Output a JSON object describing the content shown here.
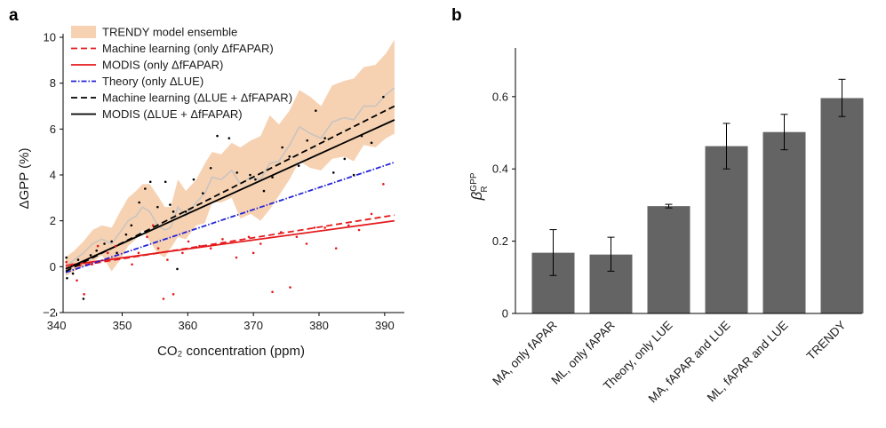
{
  "chart_data": [
    {
      "panel": "a",
      "type": "line",
      "xlabel": "CO₂ concentration (ppm)",
      "ylabel": "ΔGPP (%)",
      "xlim": [
        341,
        393
      ],
      "ylim": [
        -2,
        10
      ],
      "xticks": [
        340,
        350,
        360,
        370,
        380,
        390
      ],
      "yticks": [
        -2,
        0,
        2,
        4,
        6,
        8,
        10
      ],
      "legend_position": "top-left",
      "x": [
        341.4,
        342.7,
        344.1,
        345.5,
        346.9,
        348.4,
        349.7,
        350.9,
        352.1,
        353.1,
        354.2,
        355.4,
        356.5,
        357.4,
        358.5,
        359.7,
        361.3,
        362.6,
        363.7,
        365.1,
        366.7,
        368.0,
        369.6,
        371.1,
        372.5,
        373.9,
        375.5,
        377.0,
        378.7,
        380.3,
        382.0,
        383.8,
        385.3,
        386.8,
        388.6,
        390.2,
        391.5
      ],
      "series": [
        {
          "name": "TRENDY model ensemble",
          "style": "band",
          "color": "#f6d2b3",
          "center_color": "#c9c4c0",
          "center": [
            0.0,
            0.3,
            0.6,
            1.0,
            1.2,
            1.0,
            1.5,
            2.0,
            2.2,
            2.6,
            2.4,
            1.8,
            1.6,
            1.7,
            2.6,
            2.2,
            2.8,
            3.2,
            3.9,
            3.8,
            4.2,
            3.6,
            3.9,
            3.8,
            4.5,
            4.6,
            5.3,
            6.1,
            5.8,
            5.6,
            6.3,
            6.5,
            6.4,
            7.0,
            7.0,
            7.5,
            7.8
          ],
          "upper": [
            0.4,
            0.7,
            1.1,
            1.6,
            1.8,
            1.7,
            2.4,
            3.0,
            3.3,
            3.6,
            3.6,
            3.1,
            2.6,
            2.6,
            3.8,
            3.3,
            3.8,
            4.5,
            5.0,
            4.9,
            5.4,
            5.2,
            5.5,
            5.7,
            6.6,
            6.2,
            6.8,
            7.7,
            7.4,
            7.0,
            7.9,
            8.1,
            8.2,
            8.7,
            8.8,
            9.3,
            9.9
          ],
          "lower": [
            -0.4,
            -0.2,
            0.0,
            0.2,
            0.5,
            -0.2,
            0.3,
            0.9,
            1.2,
            1.6,
            1.1,
            0.6,
            0.4,
            0.8,
            1.3,
            1.2,
            1.8,
            1.9,
            2.8,
            2.8,
            3.0,
            2.1,
            2.3,
            2.0,
            2.5,
            3.1,
            3.8,
            4.6,
            4.3,
            4.2,
            4.7,
            4.8,
            4.6,
            5.3,
            5.2,
            5.6,
            5.8
          ]
        },
        {
          "name": "Machine learning (only ΔfFAPAR)",
          "style": "line",
          "dash": "7,4",
          "color": "#e41a1c",
          "x": [
            341.4,
            391.5
          ],
          "values": [
            -0.05,
            2.25
          ]
        },
        {
          "name": "MODIS (only ΔfFAPAR)",
          "style": "line",
          "dash": "",
          "color": "#e41a1c",
          "x": [
            341.4,
            391.5
          ],
          "values": [
            0.05,
            2.0
          ]
        },
        {
          "name": "Theory (only ΔLUE)",
          "style": "line",
          "dash": "6,2,1.5,2",
          "color": "#2323d6",
          "x": [
            341.4,
            391.5
          ],
          "values": [
            -0.25,
            4.55
          ]
        },
        {
          "name": "Machine learning (ΔLUE + ΔfFAPAR)",
          "style": "line",
          "dash": "7,4",
          "color": "#000000",
          "x": [
            341.4,
            391.5
          ],
          "values": [
            -0.2,
            7.0
          ]
        },
        {
          "name": "MODIS (ΔLUE + ΔfFAPAR)",
          "style": "line",
          "dash": "",
          "color": "#000000",
          "x": [
            341.4,
            391.5
          ],
          "values": [
            -0.1,
            6.4
          ]
        },
        {
          "name": "black-points",
          "style": "points",
          "color": "#000000",
          "points": [
            [
              341.5,
              0.4
            ],
            [
              341.6,
              -0.5
            ],
            [
              342.5,
              -0.3
            ],
            [
              343.3,
              0.3
            ],
            [
              344.1,
              -1.4
            ],
            [
              345.2,
              0.5
            ],
            [
              346.1,
              0.7
            ],
            [
              347.3,
              1.0
            ],
            [
              348.4,
              1.1
            ],
            [
              349.2,
              0.6
            ],
            [
              350.6,
              1.4
            ],
            [
              351.4,
              1.8
            ],
            [
              352.6,
              2.8
            ],
            [
              353.5,
              3.4
            ],
            [
              354.3,
              3.7
            ],
            [
              355.4,
              2.6
            ],
            [
              356.6,
              3.7
            ],
            [
              357.3,
              2.7
            ],
            [
              357.8,
              2.4
            ],
            [
              358.4,
              -0.1
            ],
            [
              359.7,
              2.4
            ],
            [
              360.9,
              3.8
            ],
            [
              362.3,
              3.2
            ],
            [
              363.5,
              4.3
            ],
            [
              364.5,
              5.7
            ],
            [
              366.3,
              5.6
            ],
            [
              367.5,
              4.1
            ],
            [
              369.5,
              4.0
            ],
            [
              370.3,
              3.8
            ],
            [
              371.6,
              3.3
            ],
            [
              372.9,
              3.9
            ],
            [
              374.4,
              5.2
            ],
            [
              375.5,
              4.8
            ],
            [
              376.9,
              4.4
            ],
            [
              378.2,
              5.5
            ],
            [
              379.5,
              6.8
            ],
            [
              380.9,
              5.6
            ],
            [
              382.2,
              4.1
            ],
            [
              383.9,
              4.7
            ],
            [
              385.3,
              4.0
            ],
            [
              386.5,
              5.7
            ],
            [
              388.0,
              5.4
            ],
            [
              389.8,
              7.4
            ]
          ]
        },
        {
          "name": "red-points",
          "style": "points",
          "color": "#e41a1c",
          "points": [
            [
              341.5,
              0.2
            ],
            [
              342.4,
              0.1
            ],
            [
              343.1,
              -0.6
            ],
            [
              344.2,
              -1.2
            ],
            [
              345.4,
              0.1
            ],
            [
              346.3,
              0.9
            ],
            [
              347.8,
              0.6
            ],
            [
              349.0,
              0.9
            ],
            [
              351.5,
              0.1
            ],
            [
              352.5,
              0.6
            ],
            [
              353.8,
              1.3
            ],
            [
              354.7,
              1.8
            ],
            [
              355.5,
              0.8
            ],
            [
              356.3,
              -1.4
            ],
            [
              356.9,
              0.3
            ],
            [
              357.8,
              -1.2
            ],
            [
              359.2,
              0.6
            ],
            [
              360.1,
              1.1
            ],
            [
              361.8,
              0.9
            ],
            [
              363.5,
              0.8
            ],
            [
              365.3,
              1.2
            ],
            [
              367.4,
              0.4
            ],
            [
              369.3,
              1.3
            ],
            [
              370.0,
              0.6
            ],
            [
              371.1,
              1.0
            ],
            [
              372.9,
              -1.1
            ],
            [
              374.2,
              1.5
            ],
            [
              375.6,
              -0.9
            ],
            [
              376.6,
              1.3
            ],
            [
              378.1,
              1.0
            ],
            [
              379.3,
              1.7
            ],
            [
              380.9,
              1.7
            ],
            [
              382.6,
              0.8
            ],
            [
              384.5,
              1.8
            ],
            [
              386.1,
              1.6
            ],
            [
              388.0,
              2.3
            ],
            [
              389.8,
              3.6
            ]
          ]
        }
      ]
    },
    {
      "panel": "b",
      "type": "bar",
      "ylabel_symbol": "β",
      "ylabel_sup": "GPP",
      "ylabel_sub": "R",
      "ylim": [
        0,
        0.72
      ],
      "yticks": [
        0,
        0.2,
        0.4,
        0.6
      ],
      "ytick_labels": [
        "0",
        "0.2",
        "0.4",
        "0.6"
      ],
      "bar_color": "#646464",
      "categories": [
        "MA, only fAPAR",
        "ML, only fAPAR",
        "Theory, only LUE",
        "MA, fAPAR and LUE",
        "ML, fAPAR and LUE",
        "TRENDY"
      ],
      "values": [
        0.168,
        0.163,
        0.297,
        0.463,
        0.502,
        0.596
      ],
      "error_low": [
        0.105,
        0.117,
        0.292,
        0.4,
        0.453,
        0.545
      ],
      "error_high": [
        0.232,
        0.211,
        0.302,
        0.526,
        0.551,
        0.648
      ]
    }
  ]
}
